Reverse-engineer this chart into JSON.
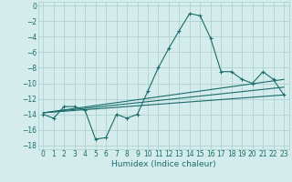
{
  "title": "",
  "xlabel": "Humidex (Indice chaleur)",
  "bg_color": "#d4edec",
  "grid_color": "#aacccc",
  "line_color": "#1a6b6b",
  "xlim": [
    -0.5,
    23.5
  ],
  "ylim": [
    -18.5,
    0.5
  ],
  "xticks": [
    0,
    1,
    2,
    3,
    4,
    5,
    6,
    7,
    8,
    9,
    10,
    11,
    12,
    13,
    14,
    15,
    16,
    17,
    18,
    19,
    20,
    21,
    22,
    23
  ],
  "yticks": [
    0,
    -2,
    -4,
    -6,
    -8,
    -10,
    -12,
    -14,
    -16,
    -18
  ],
  "main_x": [
    0,
    1,
    2,
    3,
    4,
    5,
    6,
    7,
    8,
    9,
    10,
    11,
    12,
    13,
    14,
    15,
    16,
    17,
    18,
    19,
    20,
    21,
    22,
    23
  ],
  "main_y": [
    -14,
    -14.5,
    -13,
    -13,
    -13.5,
    -17.2,
    -17,
    -14,
    -14.5,
    -14,
    -11,
    -8,
    -5.5,
    -3.2,
    -1.0,
    -1.3,
    -4.2,
    -8.5,
    -8.5,
    -9.5,
    -10,
    -8.5,
    -9.5,
    -11.5
  ],
  "line1_x": [
    0,
    23
  ],
  "line1_y": [
    -13.8,
    -9.5
  ],
  "line2_x": [
    0,
    23
  ],
  "line2_y": [
    -13.8,
    -10.5
  ],
  "line3_x": [
    0,
    23
  ],
  "line3_y": [
    -13.8,
    -11.5
  ],
  "marker_style": "+",
  "marker_size": 3.5,
  "linewidth": 0.8,
  "tick_fontsize": 5.5,
  "xlabel_fontsize": 6.5
}
